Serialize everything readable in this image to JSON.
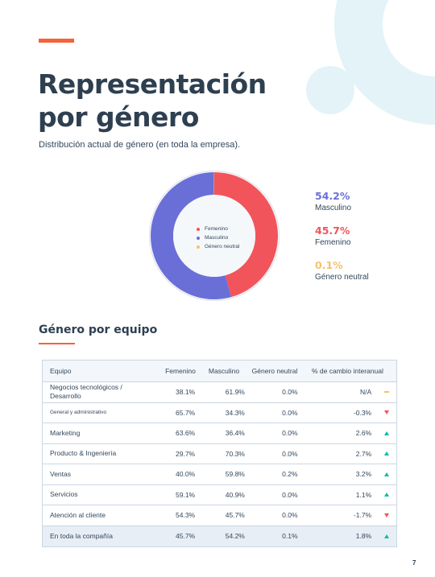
{
  "page": {
    "title_line1": "Representación",
    "title_line2": "por género",
    "subtitle": "Distribución actual de género (en toda la empresa).",
    "page_number": "7"
  },
  "colors": {
    "accent": "#f2643a",
    "femenino": "#f2545b",
    "masculino": "#6a6fd8",
    "neutral": "#f5c26b",
    "up": "#00bda5",
    "down": "#f2545b"
  },
  "donut_legend": [
    {
      "label": "Femenino",
      "color": "#f2545b"
    },
    {
      "label": "Masculino",
      "color": "#6a6fd8"
    },
    {
      "label": "Género neutral",
      "color": "#f5c26b"
    }
  ],
  "stats": [
    {
      "pct": "54.2%",
      "label": "Masculino",
      "color": "#6a6fd8"
    },
    {
      "pct": "45.7%",
      "label": "Femenino",
      "color": "#f2545b"
    },
    {
      "pct": "0.1%",
      "label": "Género neutral",
      "color": "#f5c26b"
    }
  ],
  "chart_data": {
    "type": "pie",
    "categories": [
      "Masculino",
      "Femenino",
      "Género neutral"
    ],
    "values": [
      54.2,
      45.7,
      0.1
    ],
    "colors": [
      "#6a6fd8",
      "#f2545b",
      "#f5c26b"
    ]
  },
  "section": {
    "heading": "Género por equipo"
  },
  "table": {
    "headers": [
      "Equipo",
      "Femenino",
      "Masculino",
      "Género neutral",
      "% de cambio interanual"
    ],
    "rows": [
      {
        "team": "Negocios tecnológicos / Desarrollo",
        "f": "38.1%",
        "m": "61.9%",
        "n": "0.0%",
        "chg": "N/A",
        "trend": "flat"
      },
      {
        "team": "General y administrativo",
        "f": "65.7%",
        "m": "34.3%",
        "n": "0.0%",
        "chg": "-0.3%",
        "trend": "down"
      },
      {
        "team": "Marketing",
        "f": "63.6%",
        "m": "36.4%",
        "n": "0.0%",
        "chg": "2.6%",
        "trend": "up"
      },
      {
        "team": "Producto & Ingeniería",
        "f": "29.7%",
        "m": "70.3%",
        "n": "0.0%",
        "chg": "2.7%",
        "trend": "up"
      },
      {
        "team": "Ventas",
        "f": "40.0%",
        "m": "59.8%",
        "n": "0.2%",
        "chg": "3.2%",
        "trend": "up"
      },
      {
        "team": "Servicios",
        "f": "59.1%",
        "m": "40.9%",
        "n": "0.0%",
        "chg": "1.1%",
        "trend": "up"
      },
      {
        "team": "Atención al cliente",
        "f": "54.3%",
        "m": "45.7%",
        "n": "0.0%",
        "chg": "-1.7%",
        "trend": "down"
      },
      {
        "team": "En toda la compañía",
        "f": "45.7%",
        "m": "54.2%",
        "n": "0.1%",
        "chg": "1.8%",
        "trend": "up"
      }
    ]
  }
}
